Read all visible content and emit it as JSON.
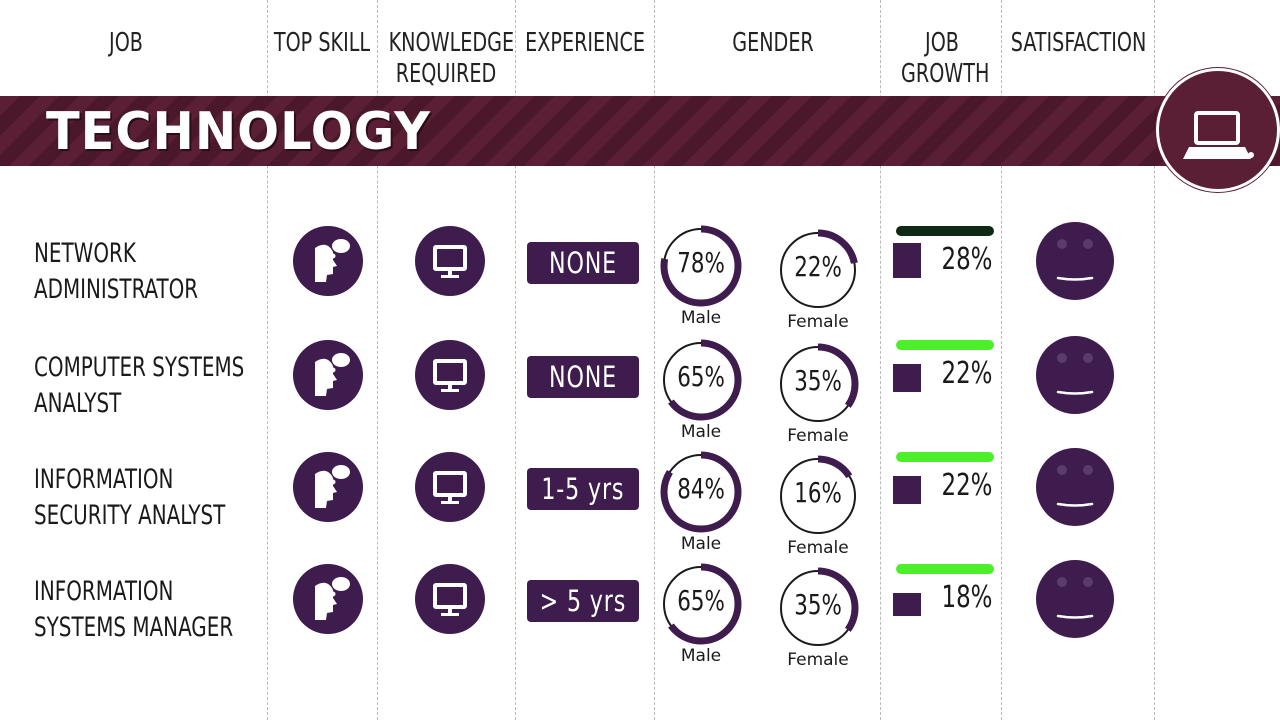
{
  "headers": {
    "job": "JOB",
    "top_skill": "TOP SKILL",
    "knowledge_line1": "KNOWLEDGE",
    "knowledge_line2": "REQUIRED",
    "experience": "EXPERIENCE",
    "gender": "GENDER",
    "growth_line1": "JOB",
    "growth_line2": "GROWTH",
    "satisfaction": "SATISFACTION"
  },
  "category": {
    "title": "TECHNOLOGY",
    "icon": "laptop-icon"
  },
  "colors": {
    "banner": "#5a1f35",
    "accent_purple": "#3f1c4e",
    "growth_dark": "#0f2a14",
    "growth_green": "#4cef2a"
  },
  "chart_data": {
    "type": "table",
    "columns": [
      "JOB",
      "TOP SKILL",
      "KNOWLEDGE REQUIRED",
      "EXPERIENCE",
      "GENDER",
      "JOB GROWTH",
      "SATISFACTION"
    ],
    "rows": [
      {
        "job_line1": "NETWORK",
        "job_line2": "ADMINISTRATOR",
        "top_skill_icon": "thinking-head-icon",
        "knowledge_icon": "computer-monitor-icon",
        "experience": "NONE",
        "male_pct": 78,
        "male_label": "78%",
        "male_text": "Male",
        "female_pct": 22,
        "female_label": "22%",
        "female_text": "Female",
        "growth_pct": 28,
        "growth_label": "28%",
        "growth_bar_color": "#0f2a14",
        "satisfaction_icon": "neutral-face-icon"
      },
      {
        "job_line1": "COMPUTER SYSTEMS",
        "job_line2": "ANALYST",
        "top_skill_icon": "thinking-head-icon",
        "knowledge_icon": "computer-monitor-icon",
        "experience": "NONE",
        "male_pct": 65,
        "male_label": "65%",
        "male_text": "Male",
        "female_pct": 35,
        "female_label": "35%",
        "female_text": "Female",
        "growth_pct": 22,
        "growth_label": "22%",
        "growth_bar_color": "#4cef2a",
        "satisfaction_icon": "neutral-face-icon"
      },
      {
        "job_line1": "INFORMATION",
        "job_line2": "SECURITY ANALYST",
        "top_skill_icon": "thinking-head-icon",
        "knowledge_icon": "computer-monitor-icon",
        "experience": "1-5 yrs",
        "male_pct": 84,
        "male_label": "84%",
        "male_text": "Male",
        "female_pct": 16,
        "female_label": "16%",
        "female_text": "Female",
        "growth_pct": 22,
        "growth_label": "22%",
        "growth_bar_color": "#4cef2a",
        "satisfaction_icon": "neutral-face-icon"
      },
      {
        "job_line1": "INFORMATION",
        "job_line2": "SYSTEMS MANAGER",
        "top_skill_icon": "thinking-head-icon",
        "knowledge_icon": "computer-monitor-icon",
        "experience": "> 5 yrs",
        "male_pct": 65,
        "male_label": "65%",
        "male_text": "Male",
        "female_pct": 35,
        "female_label": "35%",
        "female_text": "Female",
        "growth_pct": 18,
        "growth_label": "18%",
        "growth_bar_color": "#4cef2a",
        "satisfaction_icon": "neutral-face-icon"
      }
    ]
  }
}
